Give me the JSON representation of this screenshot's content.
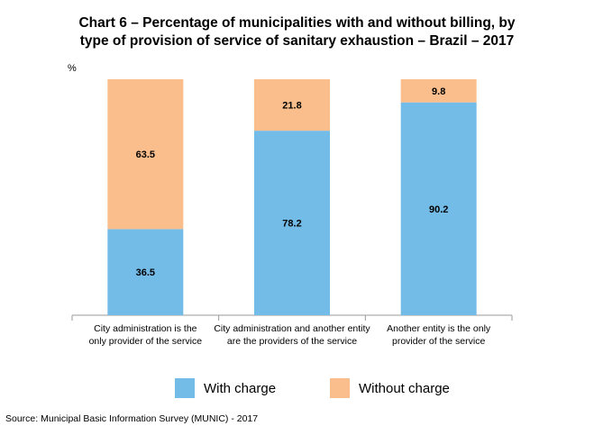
{
  "title_lines": [
    "Chart 6 – Percentage of municipalities with and without billing, by",
    "type of provision of service of sanitary exhaustion – Brazil – 2017"
  ],
  "source": "Source: Municipal Basic Information Survey (MUNIC) - 2017",
  "chart_data": {
    "type": "bar",
    "stacked": true,
    "title": "Chart 6 – Percentage of municipalities with and without billing, by type of provision of service of sanitary exhaustion – Brazil – 2017",
    "ylabel": "%",
    "ylim": [
      0,
      100
    ],
    "grid": false,
    "legend_position": "bottom",
    "categories": [
      [
        "City administration is the",
        "only provider of the service"
      ],
      [
        "City administration and another entity",
        "are the providers of the service"
      ],
      [
        "Another entity is the only",
        "provider of the service"
      ]
    ],
    "series": [
      {
        "name": "With charge",
        "color": "#74bce8",
        "values": [
          36.5,
          78.2,
          90.2
        ]
      },
      {
        "name": "Without charge",
        "color": "#f9be8c",
        "values": [
          63.5,
          21.8,
          9.8
        ]
      }
    ]
  }
}
